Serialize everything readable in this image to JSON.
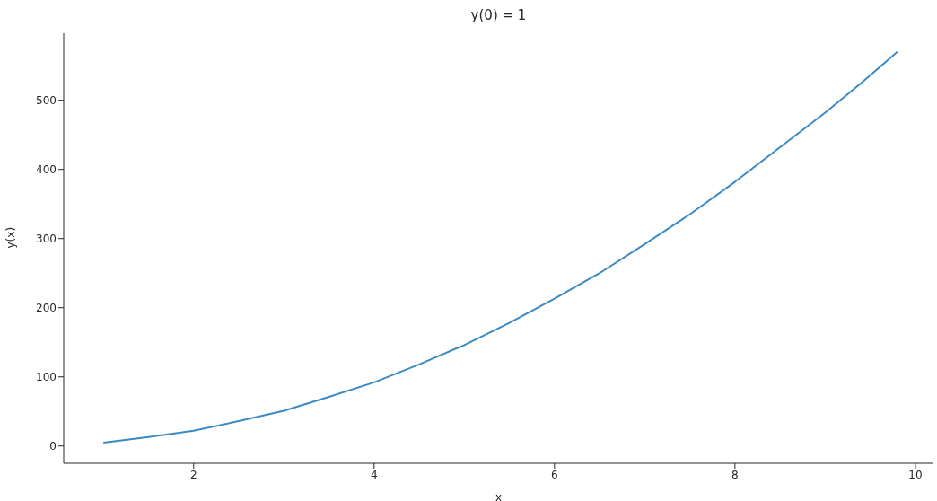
{
  "chart_data": {
    "type": "line",
    "title": "y(0) = 1",
    "xlabel": "x",
    "ylabel": "y(x)",
    "x": [
      1,
      1.5,
      2,
      2.5,
      3,
      3.5,
      4,
      4.5,
      5,
      5.5,
      6,
      6.5,
      7,
      7.5,
      8,
      8.5,
      9,
      9.4,
      9.8
    ],
    "series": [
      {
        "color": "#3a8ac4",
        "values": [
          5,
          13,
          22,
          36,
          51,
          71,
          92,
          118,
          146,
          178,
          213,
          250,
          292,
          335,
          382,
          432,
          482,
          525,
          570
        ]
      }
    ],
    "xlim": [
      0.56,
      10.2
    ],
    "xticks": [
      2,
      4,
      6,
      8,
      10
    ],
    "ylim": [
      -25,
      597
    ],
    "yticks": [
      0,
      100,
      200,
      300,
      400,
      500
    ],
    "grid": false,
    "legend": false
  }
}
